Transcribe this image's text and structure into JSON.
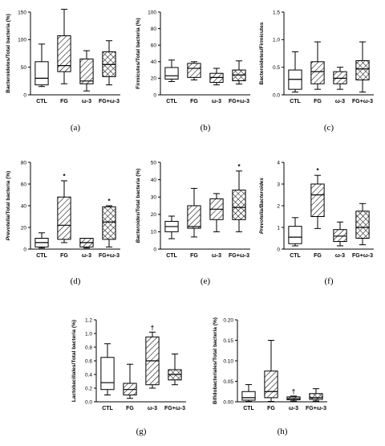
{
  "chart_data": [
    {
      "panel": "(a)",
      "type": "boxplot",
      "ylabel": "Bacteroidetes/Total bacteria (%)",
      "ylim": [
        0,
        150
      ],
      "ticks": [
        0,
        50,
        100,
        150
      ],
      "tick_labels": [
        "0",
        "50",
        "100",
        "150"
      ],
      "categories": [
        "CTL",
        "FG",
        "ω-3",
        "FG+ω-3"
      ],
      "boxes": [
        {
          "min": 15,
          "q1": 18,
          "median": 30,
          "q3": 60,
          "max": 92
        },
        {
          "min": 20,
          "q1": 42,
          "median": 53,
          "q3": 107,
          "max": 155
        },
        {
          "min": 7,
          "q1": 20,
          "median": 25,
          "q3": 65,
          "max": 80
        },
        {
          "min": 18,
          "q1": 33,
          "median": 55,
          "q3": 78,
          "max": 98
        }
      ],
      "annotations": [
        "",
        "",
        "",
        ""
      ]
    },
    {
      "panel": "(b)",
      "type": "boxplot",
      "ylabel": "Firmicutes/Total bacteria (%)",
      "ylim": [
        0,
        100
      ],
      "ticks": [
        0,
        20,
        40,
        60,
        80,
        100
      ],
      "tick_labels": [
        "0",
        "20",
        "40",
        "60",
        "80",
        "100"
      ],
      "categories": [
        "CTL",
        "FG",
        "ω-3",
        "FG+ω-3"
      ],
      "boxes": [
        {
          "min": 16,
          "q1": 19,
          "median": 23,
          "q3": 33,
          "max": 42
        },
        {
          "min": 18,
          "q1": 21,
          "median": 32,
          "q3": 38,
          "max": 40
        },
        {
          "min": 12,
          "q1": 15,
          "median": 21,
          "q3": 26,
          "max": 32
        },
        {
          "min": 13,
          "q1": 17,
          "median": 24,
          "q3": 30,
          "max": 41
        }
      ],
      "annotations": [
        "",
        "",
        "",
        ""
      ]
    },
    {
      "panel": "(c)",
      "type": "boxplot",
      "ylabel": "Bacteroidetes/Firmicutes",
      "ylim": [
        0,
        1.5
      ],
      "ticks": [
        0,
        0.5,
        1,
        1.5
      ],
      "tick_labels": [
        "0.0",
        "0.5",
        "1.0",
        "1.5"
      ],
      "categories": [
        "CTL",
        "FG",
        "ω-3",
        "FG+ω-3"
      ],
      "boxes": [
        {
          "min": 0.05,
          "q1": 0.1,
          "median": 0.28,
          "q3": 0.45,
          "max": 0.78
        },
        {
          "min": 0.1,
          "q1": 0.2,
          "median": 0.42,
          "q3": 0.6,
          "max": 0.96
        },
        {
          "min": 0.1,
          "q1": 0.2,
          "median": 0.3,
          "q3": 0.42,
          "max": 0.5
        },
        {
          "min": 0.05,
          "q1": 0.27,
          "median": 0.47,
          "q3": 0.62,
          "max": 0.96
        }
      ],
      "annotations": [
        "",
        "",
        "",
        ""
      ]
    },
    {
      "panel": "(d)",
      "type": "boxplot",
      "ylabel": "Prevotella/Total bacteria (%)",
      "ylabel_italic_part": "Prevotella",
      "ylabel_rest": "/Total bacteria (%)",
      "ylim": [
        0,
        80
      ],
      "ticks": [
        0,
        20,
        40,
        60,
        80
      ],
      "tick_labels": [
        "0",
        "20",
        "40",
        "60",
        "80"
      ],
      "categories": [
        "CTL",
        "FG",
        "ω-3",
        "FG+ω-3"
      ],
      "boxes": [
        {
          "min": 1,
          "q1": 2,
          "median": 6,
          "q3": 10,
          "max": 15
        },
        {
          "min": 6,
          "q1": 9,
          "median": 22,
          "q3": 48,
          "max": 63
        },
        {
          "min": 1,
          "q1": 2,
          "median": 6,
          "q3": 10,
          "max": 10
        },
        {
          "min": 2,
          "q1": 9,
          "median": 25,
          "q3": 39,
          "max": 40
        }
      ],
      "annotations": [
        "",
        "*",
        "",
        "*"
      ]
    },
    {
      "panel": "(e)",
      "type": "boxplot",
      "ylabel": "Bacteroides/Total bacteria (%)",
      "ylabel_italic_part": "Bacteroides",
      "ylabel_rest": "/Total bacteria (%)",
      "ylim": [
        0,
        50
      ],
      "ticks": [
        0,
        10,
        20,
        30,
        40,
        50
      ],
      "tick_labels": [
        "0",
        "10",
        "20",
        "30",
        "40",
        "50"
      ],
      "categories": [
        "CTL",
        "FG",
        "ω-3",
        "FG+ω-3"
      ],
      "boxes": [
        {
          "min": 6,
          "q1": 10,
          "median": 13,
          "q3": 16,
          "max": 19
        },
        {
          "min": 7,
          "q1": 12,
          "median": 13,
          "q3": 25,
          "max": 35
        },
        {
          "min": 10,
          "q1": 17,
          "median": 23,
          "q3": 29,
          "max": 32
        },
        {
          "min": 10,
          "q1": 17,
          "median": 24,
          "q3": 34,
          "max": 45
        }
      ],
      "annotations": [
        "",
        "",
        "",
        "*"
      ]
    },
    {
      "panel": "(f)",
      "type": "boxplot",
      "ylabel": "Prevotella/Bacteroides",
      "ylabel_italic_part": "Prevotella/Bacteroides",
      "ylabel_rest": "",
      "ylim": [
        0,
        4
      ],
      "ticks": [
        0,
        1,
        2,
        3,
        4
      ],
      "tick_labels": [
        "0",
        "1",
        "2",
        "3",
        "4"
      ],
      "categories": [
        "CTL",
        "FG",
        "ω-3",
        "FG+ω-3"
      ],
      "boxes": [
        {
          "min": 0.15,
          "q1": 0.25,
          "median": 0.55,
          "q3": 1.05,
          "max": 1.45
        },
        {
          "min": 0.95,
          "q1": 1.5,
          "median": 2.5,
          "q3": 3.0,
          "max": 3.4
        },
        {
          "min": 0.15,
          "q1": 0.35,
          "median": 0.6,
          "q3": 0.9,
          "max": 1.25
        },
        {
          "min": 0.2,
          "q1": 0.5,
          "median": 1.0,
          "q3": 1.75,
          "max": 2.1
        }
      ],
      "annotations": [
        "",
        "*",
        "",
        ""
      ]
    },
    {
      "panel": "(g)",
      "type": "boxplot",
      "ylabel": "Lactobacillales/Total bacteria (%)",
      "ylim": [
        0,
        1.2
      ],
      "ticks": [
        0,
        0.2,
        0.4,
        0.6,
        0.8,
        1.0,
        1.2
      ],
      "tick_labels": [
        "0.0",
        "0.2",
        "0.4",
        "0.6",
        "0.8",
        "1.0",
        "1.2"
      ],
      "categories": [
        "CTL",
        "FG",
        "ω-3",
        "FG+ω-3"
      ],
      "boxes": [
        {
          "min": 0.1,
          "q1": 0.18,
          "median": 0.28,
          "q3": 0.65,
          "max": 0.85
        },
        {
          "min": 0.05,
          "q1": 0.1,
          "median": 0.18,
          "q3": 0.27,
          "max": 0.55
        },
        {
          "min": 0.2,
          "q1": 0.25,
          "median": 0.6,
          "q3": 0.95,
          "max": 1.02
        },
        {
          "min": 0.25,
          "q1": 0.32,
          "median": 0.4,
          "q3": 0.47,
          "max": 0.7
        }
      ],
      "annotations": [
        "",
        "",
        "†",
        ""
      ]
    },
    {
      "panel": "(h)",
      "type": "boxplot",
      "ylabel": "Bifidobacteriales/Total bacteria (%)",
      "ylim": [
        0,
        0.2
      ],
      "ticks": [
        0,
        0.05,
        0.1,
        0.15,
        0.2
      ],
      "tick_labels": [
        "0.00",
        "0.05",
        "0.10",
        "0.15",
        "0.20"
      ],
      "categories": [
        "CTL",
        "FG",
        "ω-3",
        "FG+ω-3"
      ],
      "boxes": [
        {
          "min": 0.001,
          "q1": 0.004,
          "median": 0.01,
          "q3": 0.025,
          "max": 0.042
        },
        {
          "min": 0.001,
          "q1": 0.01,
          "median": 0.025,
          "q3": 0.075,
          "max": 0.15
        },
        {
          "min": 0.002,
          "q1": 0.005,
          "median": 0.008,
          "q3": 0.012,
          "max": 0.014
        },
        {
          "min": 0.002,
          "q1": 0.006,
          "median": 0.01,
          "q3": 0.02,
          "max": 0.032
        }
      ],
      "annotations": [
        "",
        "",
        "†",
        ""
      ]
    }
  ],
  "styles": {
    "fills": [
      "none",
      "hatch",
      "hatch",
      "crosshatch"
    ],
    "stroke": "#000000"
  }
}
